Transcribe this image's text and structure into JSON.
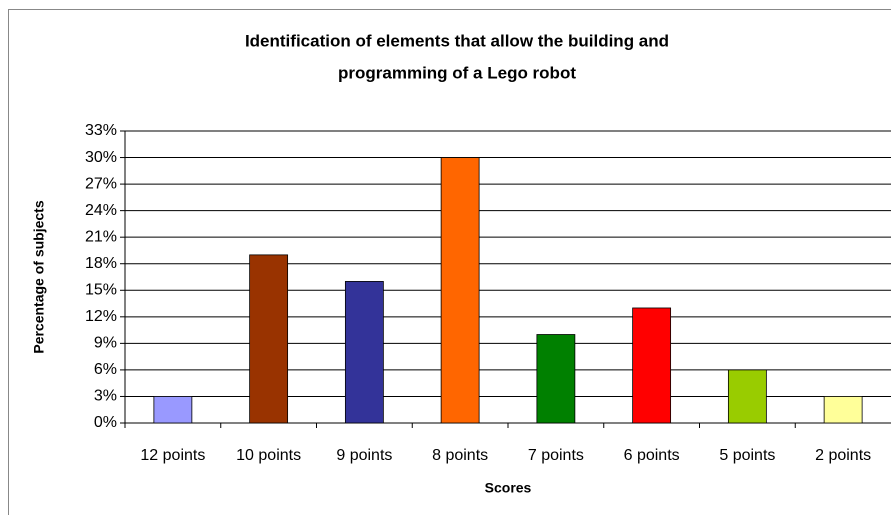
{
  "chart_data": {
    "type": "bar",
    "title": [
      "Identification of elements that allow the building and",
      "programming of a Lego robot"
    ],
    "x_label": "Scores",
    "y_label": "Percentage of subjects",
    "categories": [
      "12 points",
      "10 points",
      "9 points",
      "8 points",
      "7 points",
      "6 points",
      "5 points",
      "2 points"
    ],
    "values": [
      3,
      19,
      16,
      30,
      10,
      13,
      6,
      3
    ],
    "colors": [
      "#9999ff",
      "#993300",
      "#333399",
      "#ff6600",
      "#008000",
      "#ff0000",
      "#99cc00",
      "#ffff99"
    ],
    "ylim": [
      0,
      33
    ],
    "yticks": [
      {
        "value": 0,
        "label": "0%"
      },
      {
        "value": 3,
        "label": "3%"
      },
      {
        "value": 6,
        "label": "6%"
      },
      {
        "value": 9,
        "label": "9%"
      },
      {
        "value": 12,
        "label": "12%"
      },
      {
        "value": 15,
        "label": "15%"
      },
      {
        "value": 18,
        "label": "18%"
      },
      {
        "value": 21,
        "label": "21%"
      },
      {
        "value": 24,
        "label": "24%"
      },
      {
        "value": 27,
        "label": "27%"
      },
      {
        "value": 30,
        "label": "30%"
      },
      {
        "value": 33,
        "label": "33%"
      }
    ],
    "grid": true
  }
}
